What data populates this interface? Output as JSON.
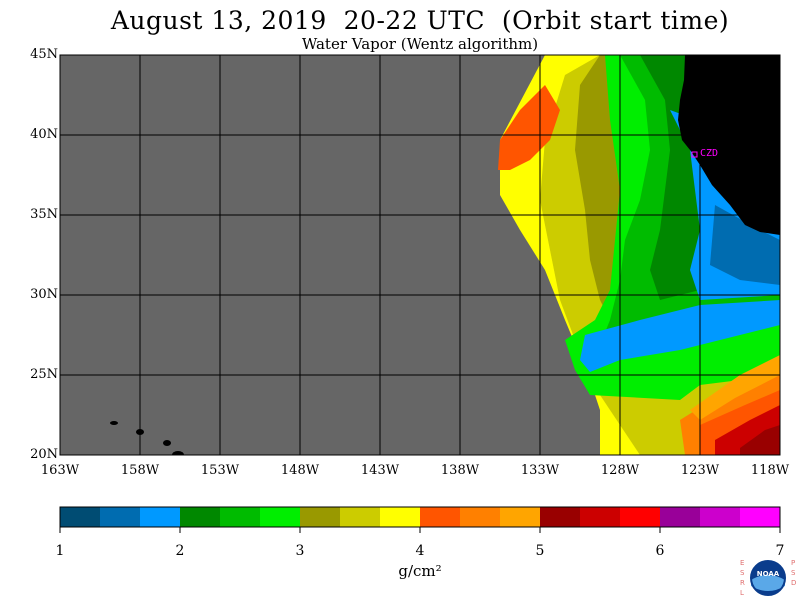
{
  "title": "August 13, 2019  20-22 UTC  (Orbit start time)",
  "subtitle": "Water Vapor (Wentz algorithm)",
  "map": {
    "lat_labels": [
      "45N",
      "40N",
      "35N",
      "30N",
      "25N",
      "20N"
    ],
    "lat_values": [
      45,
      40,
      35,
      30,
      25,
      20
    ],
    "lon_labels": [
      "163W",
      "158W",
      "153W",
      "148W",
      "143W",
      "138W",
      "133W",
      "128W",
      "123W",
      "118W"
    ],
    "lon_values": [
      -163,
      -158,
      -153,
      -148,
      -143,
      -138,
      -133,
      -128,
      -123,
      -118
    ],
    "station_label": "CZD",
    "no_data_color": "#666666",
    "land_color": "#000000",
    "grid_color": "#000000",
    "station_color": "#ff00ff"
  },
  "colorbar": {
    "tick_labels": [
      "1",
      "2",
      "3",
      "4",
      "5",
      "6",
      "7"
    ],
    "range": [
      1,
      7
    ],
    "units": "g/cm²",
    "colors": [
      "#004c73",
      "#006cb0",
      "#0099ff",
      "#008800",
      "#00bb00",
      "#00ee00",
      "#999900",
      "#cccc00",
      "#ffff00",
      "#ff5500",
      "#ff8000",
      "#ffa500",
      "#990000",
      "#cc0000",
      "#ff0000",
      "#990099",
      "#cc00cc",
      "#ff00ff"
    ]
  },
  "logo": {
    "left_letters": "ESRL",
    "right_letters": "PSD",
    "center_text": "NOAA"
  }
}
